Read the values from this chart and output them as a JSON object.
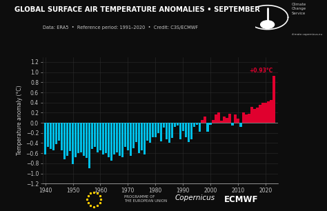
{
  "title": "GLOBAL SURFACE AIR TEMPERATURE ANOMALIES • SEPTEMBER",
  "subtitle": "Data: ERA5  •  Reference period: 1991–2020  •  Credit: C3S/ECMWF",
  "ylabel": "Temperature anomaly (°C)",
  "bg_color": "#0d0d0d",
  "text_color": "#c8c8c8",
  "grid_color": "#2d2d2d",
  "ylim": [
    -1.2,
    1.3
  ],
  "yticks": [
    -1.2,
    -1.0,
    -0.8,
    -0.6,
    -0.4,
    -0.2,
    0.0,
    0.2,
    0.4,
    0.6,
    0.8,
    1.0,
    1.2
  ],
  "xlim": [
    1939.0,
    2024.5
  ],
  "xticks": [
    1940,
    1950,
    1960,
    1970,
    1980,
    1990,
    2000,
    2010,
    2020
  ],
  "bar_color_neg": "#00c0e8",
  "bar_color_pos": "#e0002e",
  "annotation_color": "#e0002e",
  "annotation_text": "+0.93°C",
  "annotation_year": 2023,
  "years": [
    1940,
    1941,
    1942,
    1943,
    1944,
    1945,
    1946,
    1947,
    1948,
    1949,
    1950,
    1951,
    1952,
    1953,
    1954,
    1955,
    1956,
    1957,
    1958,
    1959,
    1960,
    1961,
    1962,
    1963,
    1964,
    1965,
    1966,
    1967,
    1968,
    1969,
    1970,
    1971,
    1972,
    1973,
    1974,
    1975,
    1976,
    1977,
    1978,
    1979,
    1980,
    1981,
    1982,
    1983,
    1984,
    1985,
    1986,
    1987,
    1988,
    1989,
    1990,
    1991,
    1992,
    1993,
    1994,
    1995,
    1996,
    1997,
    1998,
    1999,
    2000,
    2001,
    2002,
    2003,
    2004,
    2005,
    2006,
    2007,
    2008,
    2009,
    2010,
    2011,
    2012,
    2013,
    2014,
    2015,
    2016,
    2017,
    2018,
    2019,
    2020,
    2021,
    2022,
    2023
  ],
  "anomalies": [
    -0.63,
    -0.48,
    -0.52,
    -0.55,
    -0.42,
    -0.35,
    -0.55,
    -0.72,
    -0.65,
    -0.56,
    -0.82,
    -0.68,
    -0.6,
    -0.58,
    -0.65,
    -0.7,
    -0.9,
    -0.52,
    -0.48,
    -0.58,
    -0.55,
    -0.62,
    -0.6,
    -0.68,
    -0.75,
    -0.62,
    -0.58,
    -0.65,
    -0.68,
    -0.48,
    -0.55,
    -0.65,
    -0.5,
    -0.38,
    -0.6,
    -0.55,
    -0.62,
    -0.35,
    -0.4,
    -0.28,
    -0.28,
    -0.2,
    -0.36,
    -0.1,
    -0.32,
    -0.4,
    -0.3,
    -0.08,
    -0.06,
    -0.32,
    -0.16,
    -0.28,
    -0.38,
    -0.32,
    -0.08,
    -0.04,
    -0.18,
    0.06,
    0.12,
    -0.18,
    -0.04,
    0.06,
    0.16,
    0.2,
    0.04,
    0.12,
    0.1,
    0.18,
    -0.06,
    0.16,
    0.08,
    -0.08,
    0.2,
    0.16,
    0.18,
    0.32,
    0.28,
    0.3,
    0.36,
    0.4,
    0.4,
    0.42,
    0.45,
    0.93
  ],
  "logo_circle_color": "white",
  "climate_text": "Climate\nChange\nService",
  "url_text": "climate.copernicus.eu",
  "bottom_text1": "PROGRAMME OF\nTHE EUROPEAN UNION",
  "bottom_text2": "Copernicus",
  "bottom_text3": "ECMWF"
}
